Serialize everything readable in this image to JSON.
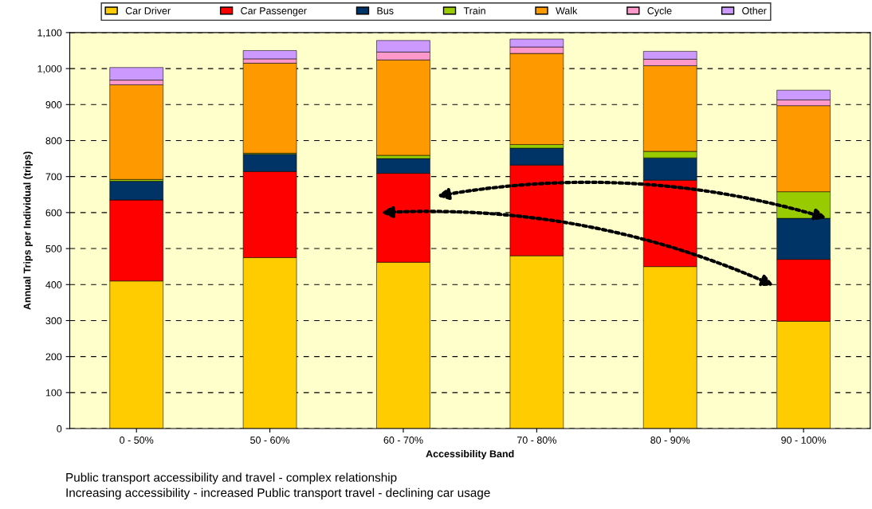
{
  "chart_data": {
    "type": "bar",
    "stacked": true,
    "xlabel": "Accessibility Band",
    "ylabel": "Annual Trips per Individual (trips)",
    "categories": [
      "0 - 50%",
      "50 - 60%",
      "60 - 70%",
      "70 - 80%",
      "80 - 90%",
      "90 - 100%"
    ],
    "series": [
      {
        "name": "Car Driver",
        "color": "#ffcc00",
        "values": [
          410,
          475,
          462,
          480,
          450,
          298
        ]
      },
      {
        "name": "Car Passenger",
        "color": "#ff0000",
        "values": [
          225,
          239,
          247,
          252,
          240,
          172
        ]
      },
      {
        "name": "Bus",
        "color": "#003366",
        "values": [
          52,
          48,
          41,
          47,
          62,
          114
        ]
      },
      {
        "name": "Train",
        "color": "#99cc00",
        "values": [
          5,
          3,
          9,
          10,
          18,
          74
        ]
      },
      {
        "name": "Walk",
        "color": "#ff9900",
        "values": [
          263,
          250,
          265,
          253,
          238,
          239
        ]
      },
      {
        "name": "Cycle",
        "color": "#ff99cc",
        "values": [
          13,
          12,
          22,
          18,
          18,
          16
        ]
      },
      {
        "name": "Other",
        "color": "#cc99ff",
        "values": [
          35,
          23,
          32,
          22,
          22,
          27
        ]
      }
    ],
    "ylim": [
      0,
      1100
    ],
    "yticks": [
      0,
      100,
      200,
      300,
      400,
      500,
      600,
      700,
      800,
      900,
      {
        "value": 1000,
        "label": "1,000"
      },
      {
        "value": 1100,
        "label": "1,100"
      }
    ],
    "grid": "y",
    "legend": "top",
    "annotations": [
      "Public transport accessibility and travel - complex relationship",
      "Increasing accessibility - increased Public transport travel - declining car usage"
    ]
  }
}
